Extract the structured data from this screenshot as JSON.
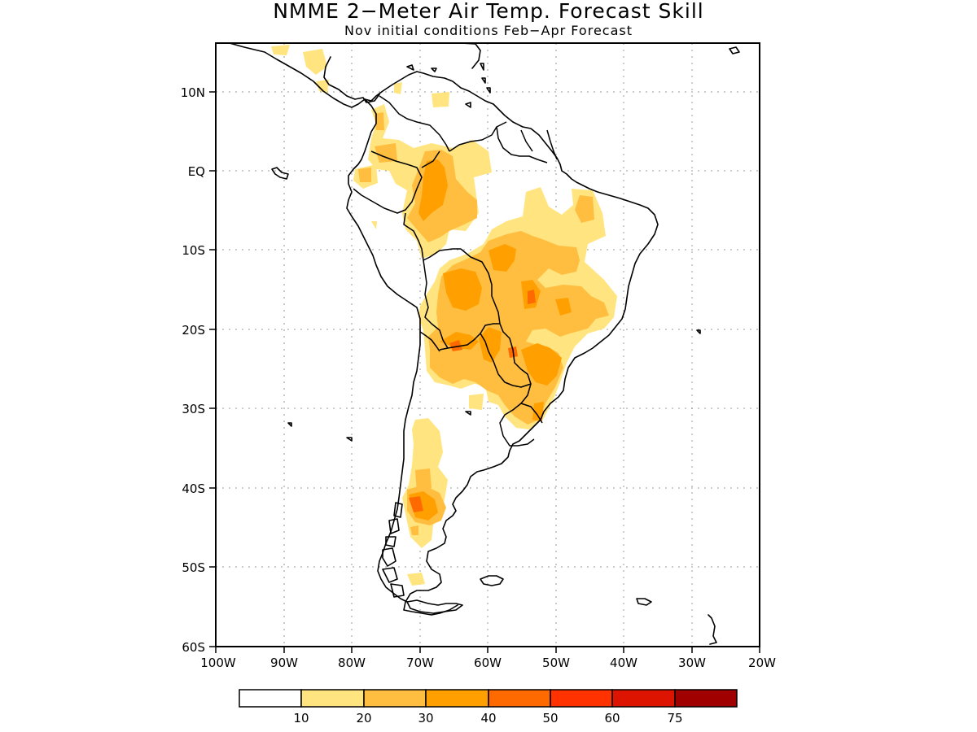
{
  "title": "NMME 2−Meter Air Temp. Forecast Skill",
  "subtitle": "Nov initial conditions  Feb−Apr Forecast",
  "axes": {
    "lat_ticks": [
      "10N",
      "EQ",
      "10S",
      "20S",
      "30S",
      "40S",
      "50S",
      "60S"
    ],
    "lon_ticks": [
      "100W",
      "90W",
      "80W",
      "70W",
      "60W",
      "50W",
      "40W",
      "30W",
      "20W"
    ]
  },
  "colorbar": {
    "labels": [
      "10",
      "20",
      "30",
      "40",
      "50",
      "60",
      "75"
    ],
    "colors": [
      "#ffffff",
      "#ffe47f",
      "#ffbe40",
      "#ffa000",
      "#ff6a00",
      "#ff3200",
      "#dd1400",
      "#a00000"
    ]
  }
}
